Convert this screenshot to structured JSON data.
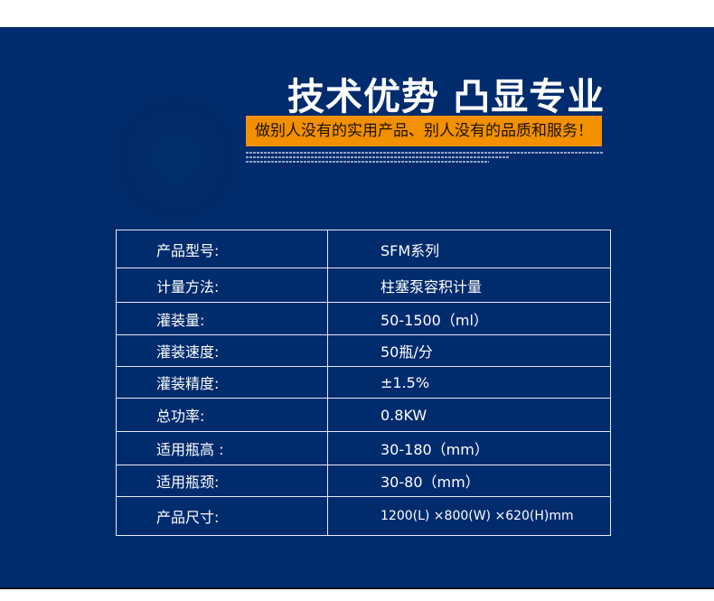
{
  "header": {
    "title": "技术优势 凸显专业",
    "slogan": "做别人没有的实用产品、别人没有的品质和服务！"
  },
  "specs": [
    {
      "label": "产品型号:",
      "value": "SFM系列"
    },
    {
      "label": "计量方法:",
      "value": "柱塞泵容积计量"
    },
    {
      "label": "灌装量:",
      "value": "50-1500（ml）"
    },
    {
      "label": "灌装速度:",
      "value": "50瓶/分"
    },
    {
      "label": "灌装精度:",
      "value": "±1.5%"
    },
    {
      "label": "总功率:",
      "value": "0.8KW"
    },
    {
      "label": "适用瓶高 :",
      "value": "30-180（mm）"
    },
    {
      "label": "适用瓶颈:",
      "value": "30-80（mm）"
    },
    {
      "label": "产品尺寸:",
      "value": "1200(L) ×800(W) ×620(H)mm"
    }
  ],
  "colors": {
    "background": "#002b6d",
    "accent": "#f39000"
  }
}
